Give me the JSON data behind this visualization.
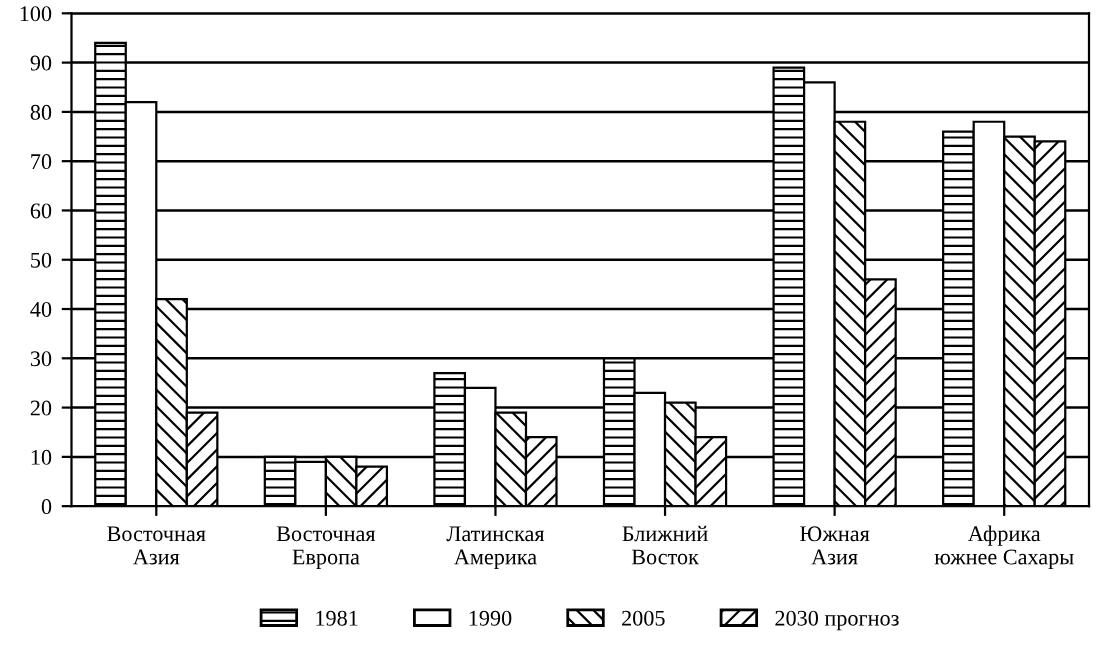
{
  "chart_data": {
    "type": "bar",
    "categories": [
      "Восточная\nАзия",
      "Восточная\nЕвропа",
      "Латинская\nАмерика",
      "Ближний\nВосток",
      "Южная\nАзия",
      "Африка\nюжнее Сахары"
    ],
    "series": [
      {
        "name": "1981",
        "color": "#000000",
        "values": [
          94,
          10,
          27,
          30,
          89,
          76
        ]
      },
      {
        "name": "1990",
        "color": "#ffffff",
        "values": [
          82,
          9,
          24,
          23,
          86,
          78
        ]
      },
      {
        "name": "2005",
        "color": "#000000",
        "values": [
          42,
          10,
          19,
          21,
          78,
          75
        ]
      },
      {
        "name": "2030 прогноз",
        "color": "#000000",
        "values": [
          19,
          8,
          14,
          14,
          46,
          74
        ]
      }
    ],
    "ylim": [
      0,
      100
    ],
    "yticks": [
      0,
      10,
      20,
      30,
      40,
      50,
      60,
      70,
      80,
      90,
      100
    ],
    "grid": "y",
    "legend": "bottom"
  }
}
